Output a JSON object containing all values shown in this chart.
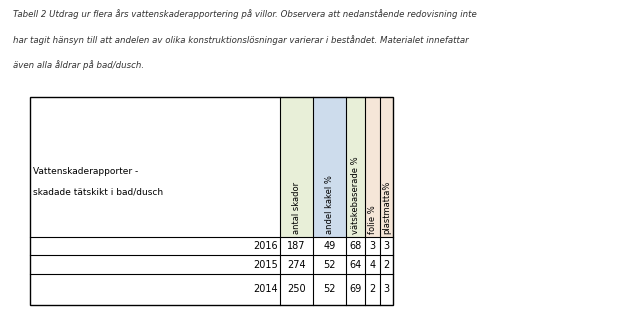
{
  "caption_line1": "Tabell 2 Utdrag ur flera års vattenskaderapportering på villor. Observera att nedanstående redovisning inte",
  "caption_line2": "har tagit hänsyn till att andelen av olika konstruktionslösningar varierar i beståndet. Materialet innefattar",
  "caption_line3": "även alla åldrar på bad/dusch.",
  "row_header_line1": "Vattenskaderapporter -",
  "row_header_line2": "skadade tätskikt i bad/dusch",
  "col_headers": [
    "antal skador",
    "andel kakel %",
    "vätskebaserade %",
    "folie %",
    "plastmatta%"
  ],
  "col_header_colors": [
    "#e8efd8",
    "#cddcec",
    "#e8efd8",
    "#f5e6d8",
    "#f5e6d8"
  ],
  "rows": [
    {
      "year": "2016",
      "values": [
        "187",
        "49",
        "68",
        "3",
        "3"
      ]
    },
    {
      "year": "2015",
      "values": [
        "274",
        "52",
        "64",
        "4",
        "2"
      ]
    },
    {
      "year": "2014",
      "values": [
        "250",
        "52",
        "69",
        "2",
        "3"
      ]
    }
  ],
  "bg_color": "#ffffff",
  "text_color": "#000000",
  "fig_width": 6.33,
  "fig_height": 3.16,
  "dpi": 100
}
